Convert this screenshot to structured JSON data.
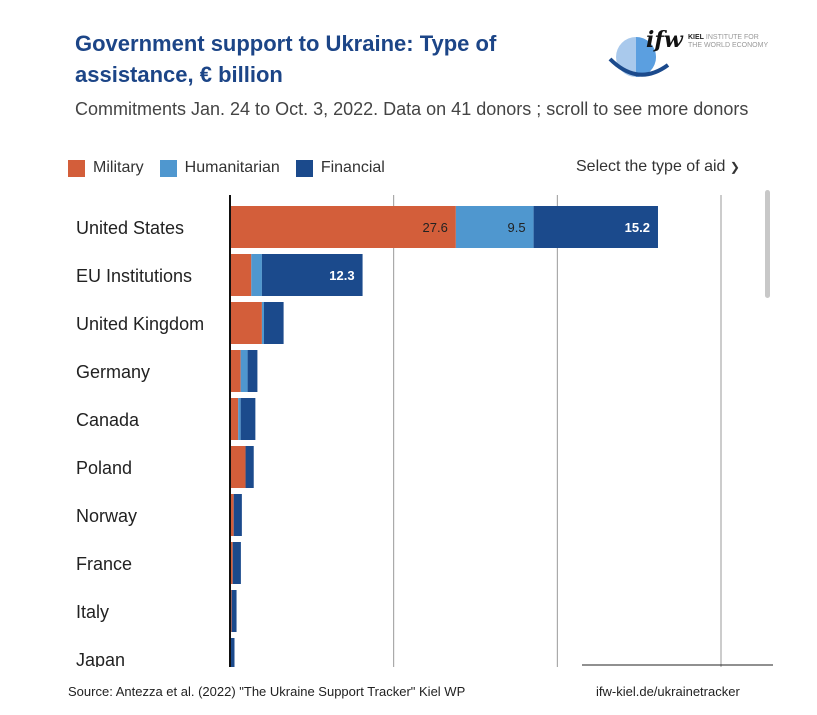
{
  "title": "Government support to Ukraine: Type of assistance, € billion",
  "subtitle": "Commitments Jan. 24 to Oct. 3, 2022. Data on 41 donors ; scroll to see more donors",
  "logo": {
    "mark": "ifw",
    "text_bold": "KIEL",
    "text_line1": "INSTITUTE FOR",
    "text_line2": "THE WORLD ECONOMY"
  },
  "select_label": "Select the type of aid",
  "footer": {
    "source": "Source: Antezza et al. (2022) \"The Ukraine Support Tracker\" Kiel WP",
    "link": "ifw-kiel.de/ukrainetracker"
  },
  "chart_data": {
    "type": "bar",
    "orientation": "horizontal-stacked",
    "categories": [
      "United States",
      "EU Institutions",
      "United Kingdom",
      "Germany",
      "Canada",
      "Poland",
      "Norway",
      "France",
      "Italy",
      "Japan"
    ],
    "series": [
      {
        "name": "Military",
        "color": "#d35e3a",
        "values": [
          27.6,
          2.6,
          3.9,
          1.3,
          1.0,
          1.9,
          0.45,
          0.33,
          0.2,
          0.05
        ]
      },
      {
        "name": "Humanitarian",
        "color": "#4f97cf",
        "values": [
          9.5,
          1.3,
          0.25,
          0.85,
          0.3,
          0.0,
          0.0,
          0.0,
          0.0,
          0.0
        ]
      },
      {
        "name": "Financial",
        "color": "#1b4a8c",
        "values": [
          15.2,
          12.3,
          2.4,
          1.2,
          1.8,
          1.0,
          1.0,
          1.0,
          0.6,
          0.5
        ]
      }
    ],
    "data_labels": [
      [
        "27.6",
        "9.5",
        "15.2"
      ],
      [
        "",
        "",
        "12.3"
      ]
    ],
    "xlim": [
      0,
      60
    ],
    "gridlines": [
      20,
      40,
      60
    ],
    "grid": true,
    "legend": "top-left"
  }
}
